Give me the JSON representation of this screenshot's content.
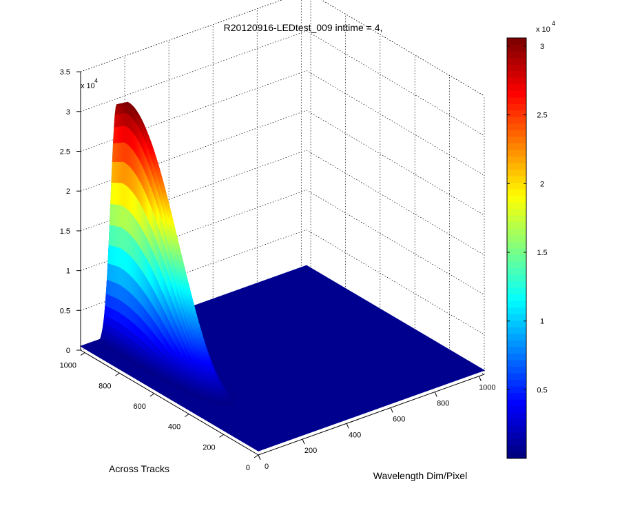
{
  "chart_data": {
    "type": "surface3d",
    "title": "R20120916-LEDtest_009 inttime = 4,",
    "xlabel": "Wavelength Dim/Pixel",
    "ylabel": "Across Tracks",
    "zlabel": "",
    "xlim": [
      0,
      1024
    ],
    "ylim": [
      0,
      1024
    ],
    "zlim": [
      0,
      35000
    ],
    "x_ticks": [
      "0",
      "200",
      "400",
      "600",
      "800",
      "1000"
    ],
    "y_ticks": [
      "0",
      "200",
      "400",
      "600",
      "800",
      "1000"
    ],
    "z_ticks": [
      "0",
      "0.5",
      "1",
      "1.5",
      "2",
      "2.5",
      "3",
      "3.5"
    ],
    "z_multiplier": "x 10",
    "z_multiplier_exp": "4",
    "grid": true,
    "colormap": "jet",
    "colorbar": {
      "ticks": [
        "0.5",
        "1",
        "1.5",
        "2",
        "2.5",
        "3"
      ],
      "multiplier": "x 10",
      "multiplier_exp": "4",
      "range": [
        500,
        30500
      ]
    },
    "peak": {
      "x_center": 140,
      "x_halfwidth": 40,
      "y_start": 300,
      "y_end": 1000,
      "z_max": 31000,
      "base_level": 500
    },
    "background_level": 500,
    "colors": {
      "floor": "#00008f",
      "axis": "#000000"
    }
  }
}
